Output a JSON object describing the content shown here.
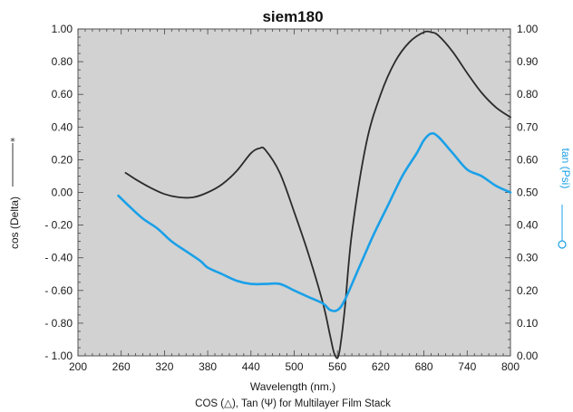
{
  "chart_data": {
    "type": "line",
    "title": "siem180",
    "xlabel": "Wavelength (nm.)",
    "ylabel_left": "cos (Delta)",
    "ylabel_right": "tan (Psi)",
    "caption": "COS (△), Tan (Ψ) for Multilayer Film Stack",
    "xlim": [
      200,
      800
    ],
    "ylim_left": [
      -1.0,
      1.0
    ],
    "ylim_right": [
      0.0,
      1.0
    ],
    "x_ticks": [
      "200",
      "260",
      "320",
      "380",
      "440",
      "500",
      "560",
      "620",
      "680",
      "740",
      "800"
    ],
    "y_left_ticks": [
      "1.00",
      "0.80",
      "0.60",
      "0.40",
      "0.20",
      "0.00",
      "- 0.20",
      "- 0.40",
      "- 0.60",
      "- 0.80",
      "- 1.00"
    ],
    "y_right_ticks": [
      "1.00",
      "0.90",
      "0.80",
      "0.70",
      "0.60",
      "0.50",
      "0.40",
      "0.30",
      "0.20",
      "0.10",
      "0.00"
    ],
    "grid": false,
    "background": "#d2d2d2",
    "series": [
      {
        "axis": "left",
        "color": "#2b2b2b",
        "x": [
          266,
          280,
          300,
          320,
          340,
          360,
          380,
          400,
          420,
          440,
          452,
          460,
          480,
          500,
          520,
          540,
          550,
          556,
          562,
          570,
          580,
          600,
          620,
          640,
          660,
          680,
          690,
          700,
          720,
          740,
          760,
          780,
          800
        ],
        "y": [
          0.12,
          0.08,
          0.03,
          -0.01,
          -0.03,
          -0.03,
          0.0,
          0.05,
          0.13,
          0.24,
          0.27,
          0.26,
          0.12,
          -0.12,
          -0.38,
          -0.68,
          -0.88,
          -0.99,
          -0.99,
          -0.72,
          -0.25,
          0.3,
          0.6,
          0.8,
          0.92,
          0.98,
          0.98,
          0.96,
          0.86,
          0.73,
          0.61,
          0.52,
          0.46
        ]
      },
      {
        "axis": "right",
        "color": "#1aa0e8",
        "x": [
          256,
          270,
          290,
          310,
          330,
          350,
          370,
          380,
          400,
          420,
          440,
          460,
          480,
          500,
          520,
          540,
          550,
          560,
          570,
          590,
          610,
          630,
          650,
          670,
          680,
          690,
          700,
          720,
          740,
          760,
          780,
          800
        ],
        "y": [
          0.49,
          0.46,
          0.42,
          0.39,
          0.35,
          0.32,
          0.29,
          0.27,
          0.25,
          0.23,
          0.22,
          0.22,
          0.22,
          0.2,
          0.18,
          0.16,
          0.14,
          0.14,
          0.17,
          0.27,
          0.37,
          0.46,
          0.55,
          0.62,
          0.66,
          0.68,
          0.67,
          0.62,
          0.57,
          0.55,
          0.52,
          0.5
        ]
      }
    ]
  }
}
